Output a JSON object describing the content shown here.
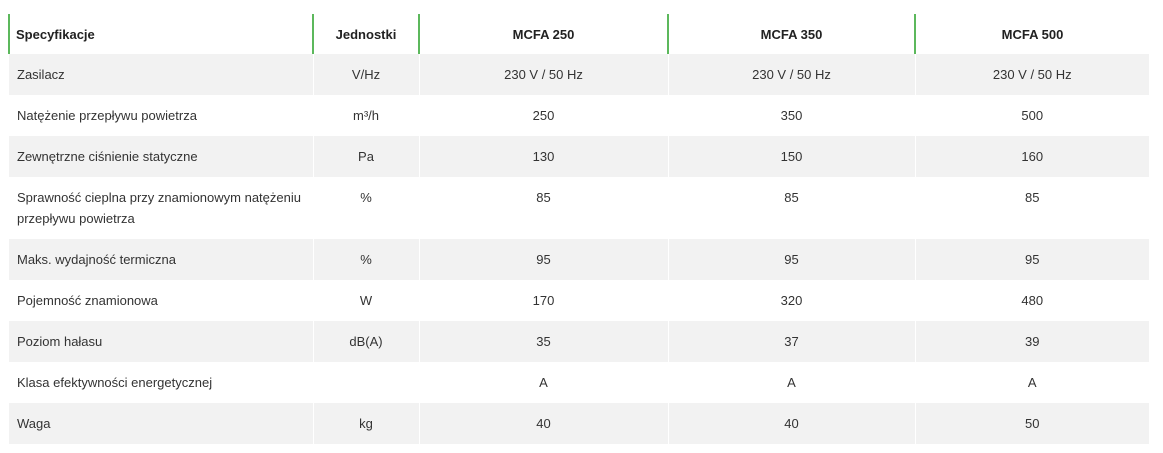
{
  "table": {
    "headers": [
      "Specyfikacje",
      "Jednostki",
      "MCFA 250",
      "MCFA 350",
      "MCFA 500"
    ],
    "rows": [
      {
        "name": "Zasilacz",
        "unit": "V/Hz",
        "values": [
          "230 V / 50 Hz",
          "230 V / 50 Hz",
          "230 V / 50 Hz"
        ]
      },
      {
        "name": "Natężenie przepływu powietrza",
        "unit": "m³/h",
        "values": [
          "250",
          "350",
          "500"
        ]
      },
      {
        "name": "Zewnętrzne ciśnienie statyczne",
        "unit": "Pa",
        "values": [
          "130",
          "150",
          "160"
        ]
      },
      {
        "name": "Sprawność cieplna przy znamionowym natężeniu przepływu powietrza",
        "unit": "%",
        "values": [
          "85",
          "85",
          "85"
        ]
      },
      {
        "name": "Maks. wydajność termiczna",
        "unit": "%",
        "values": [
          "95",
          "95",
          "95"
        ]
      },
      {
        "name": "Pojemność znamionowa",
        "unit": "W",
        "values": [
          "170",
          "320",
          "480"
        ]
      },
      {
        "name": "Poziom hałasu",
        "unit": "dB(A)",
        "values": [
          "35",
          "37",
          "39"
        ]
      },
      {
        "name": "Klasa efektywności energetycznej",
        "unit": "",
        "values": [
          "A",
          "A",
          "A"
        ]
      },
      {
        "name": "Waga",
        "unit": "kg",
        "values": [
          "40",
          "40",
          "50"
        ]
      }
    ]
  },
  "colors": {
    "header_divider": "#5cb85c",
    "row_stripe": "#f2f2f2"
  }
}
